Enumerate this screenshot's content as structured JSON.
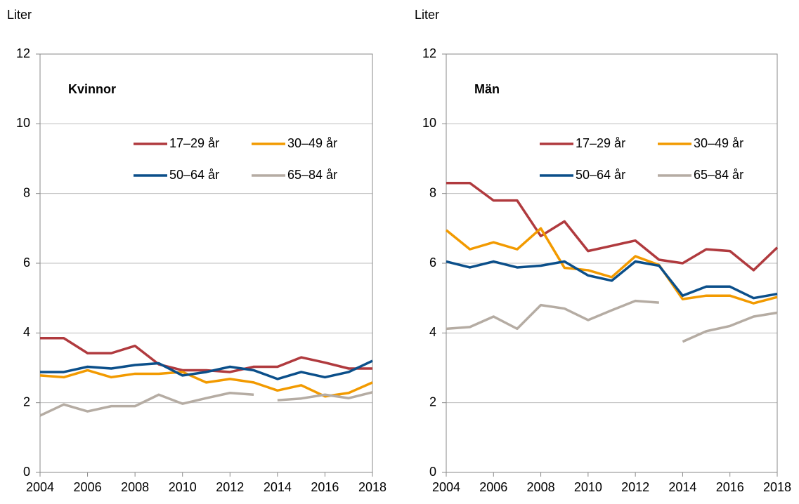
{
  "chart_data": [
    {
      "type": "line",
      "title": "Kvinnor",
      "y_label": "Liter",
      "x": [
        2004,
        2005,
        2006,
        2007,
        2008,
        2009,
        2010,
        2011,
        2012,
        2013,
        2014,
        2015,
        2016,
        2017,
        2018
      ],
      "xlim": [
        2004,
        2018
      ],
      "xticks": [
        2004,
        2006,
        2008,
        2010,
        2012,
        2014,
        2016,
        2018
      ],
      "ylim": [
        0,
        12
      ],
      "yticks": [
        0,
        2,
        4,
        6,
        8,
        10,
        12
      ],
      "grid": true,
      "series": [
        {
          "name": "17–29 år",
          "color": "#b03a3e",
          "values": [
            3.85,
            3.85,
            3.42,
            3.42,
            3.63,
            3.1,
            2.93,
            2.93,
            2.88,
            3.03,
            3.03,
            3.3,
            3.15,
            2.98,
            2.98
          ]
        },
        {
          "name": "30–49 år",
          "color": "#f29a00",
          "values": [
            2.78,
            2.73,
            2.93,
            2.73,
            2.83,
            2.83,
            2.88,
            2.58,
            2.68,
            2.58,
            2.35,
            2.5,
            2.18,
            2.28,
            2.58
          ]
        },
        {
          "name": "50–64 år",
          "color": "#0b4f8a",
          "values": [
            2.88,
            2.88,
            3.03,
            2.98,
            3.08,
            3.13,
            2.78,
            2.88,
            3.03,
            2.93,
            2.68,
            2.88,
            2.73,
            2.88,
            3.2
          ]
        },
        {
          "name": "65–84 år",
          "color": "#b5aca3",
          "x": [
            2004,
            2005,
            2006,
            2007,
            2008,
            2009,
            2010,
            2011,
            2012,
            2013,
            null,
            2014,
            2015,
            2016,
            2017,
            2018
          ],
          "values": [
            1.63,
            1.95,
            1.75,
            1.9,
            1.9,
            2.23,
            1.97,
            2.13,
            2.28,
            2.23,
            null,
            2.07,
            2.12,
            2.23,
            2.13,
            2.3
          ]
        }
      ]
    },
    {
      "type": "line",
      "title": "Män",
      "y_label": "Liter",
      "x": [
        2004,
        2005,
        2006,
        2007,
        2008,
        2009,
        2010,
        2011,
        2012,
        2013,
        2014,
        2015,
        2016,
        2017,
        2018
      ],
      "xlim": [
        2004,
        2018
      ],
      "xticks": [
        2004,
        2006,
        2008,
        2010,
        2012,
        2014,
        2016,
        2018
      ],
      "ylim": [
        0,
        12
      ],
      "yticks": [
        0,
        2,
        4,
        6,
        8,
        10,
        12
      ],
      "grid": true,
      "series": [
        {
          "name": "17–29 år",
          "color": "#b03a3e",
          "values": [
            8.3,
            8.3,
            7.8,
            7.8,
            6.78,
            7.2,
            6.35,
            6.5,
            6.65,
            6.1,
            6.0,
            6.4,
            6.35,
            5.8,
            6.45
          ]
        },
        {
          "name": "30–49 år",
          "color": "#f29a00",
          "values": [
            6.95,
            6.4,
            6.6,
            6.4,
            7.0,
            5.87,
            5.8,
            5.6,
            6.2,
            5.95,
            4.97,
            5.07,
            5.07,
            4.85,
            5.03
          ]
        },
        {
          "name": "50–64 år",
          "color": "#0b4f8a",
          "values": [
            6.05,
            5.88,
            6.05,
            5.88,
            5.93,
            6.05,
            5.65,
            5.5,
            6.05,
            5.93,
            5.07,
            5.33,
            5.33,
            5.0,
            5.12
          ]
        },
        {
          "name": "65–84 år",
          "color": "#b5aca3",
          "x": [
            2004,
            2005,
            2006,
            2007,
            2008,
            2009,
            2010,
            2011,
            2012,
            2013,
            null,
            2014,
            2015,
            2016,
            2017,
            2018
          ],
          "values": [
            4.12,
            4.17,
            4.47,
            4.12,
            4.8,
            4.7,
            4.37,
            4.65,
            4.92,
            4.87,
            null,
            3.75,
            4.05,
            4.2,
            4.47,
            4.58
          ]
        }
      ]
    }
  ]
}
